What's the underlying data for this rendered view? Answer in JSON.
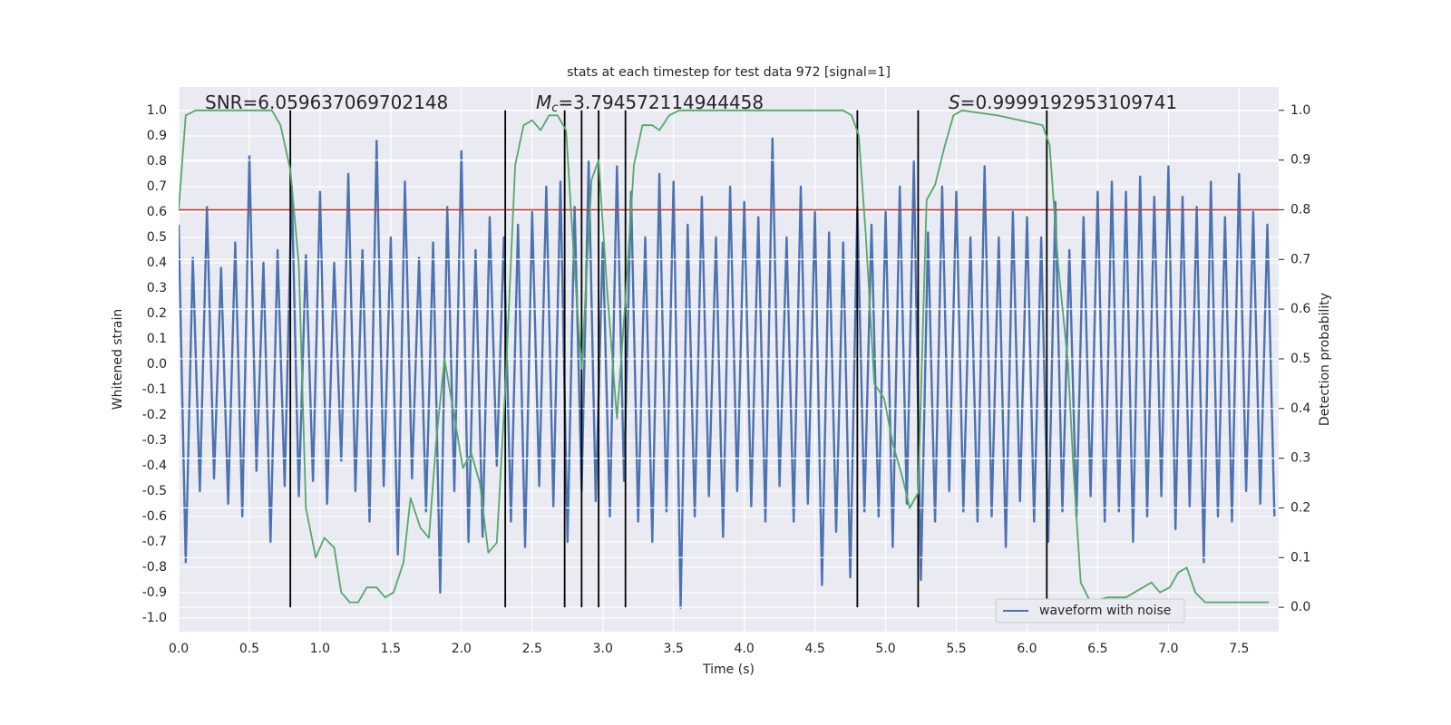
{
  "chart_data": {
    "type": "line",
    "title": "stats at each timestep for test data 972 [signal=1]",
    "xlabel": "Time (s)",
    "ylabel": "Whitened strain",
    "y2label": "Detection probability",
    "xlim": [
      0,
      7.78
    ],
    "ylim": [
      -1.054,
      1.093
    ],
    "y2lim": [
      -0.049,
      1.047
    ],
    "xticks": [
      {
        "value": 0,
        "label": "0.0"
      },
      0.5,
      {
        "value": 1,
        "label": "1.0"
      },
      1.5,
      {
        "value": 2,
        "label": "2.0"
      },
      2.5,
      {
        "value": 3,
        "label": "3.0"
      },
      3.5,
      {
        "value": 4,
        "label": "4.0"
      },
      4.5,
      {
        "value": 5,
        "label": "5.0"
      },
      5.5,
      {
        "value": 6,
        "label": "6.0"
      },
      6.5,
      {
        "value": 7,
        "label": "7.0"
      },
      7.5
    ],
    "yticks": [
      {
        "value": -1,
        "label": "-1.0"
      },
      -0.9,
      -0.8,
      -0.7,
      -0.6,
      -0.5,
      -0.4,
      -0.3,
      -0.2,
      -0.1,
      {
        "value": 0,
        "label": "0.0"
      },
      0.1,
      0.2,
      0.3,
      0.4,
      0.5,
      0.6,
      0.7,
      0.8,
      0.9,
      {
        "value": 1,
        "label": "1.0"
      }
    ],
    "y2ticks": [
      {
        "value": 0,
        "label": "0.0"
      },
      0.1,
      0.2,
      0.3,
      0.4,
      0.5,
      0.6,
      0.7,
      0.8,
      0.9,
      {
        "value": 1,
        "label": "1.0"
      }
    ],
    "grid": true,
    "legend": "lower right",
    "series": [
      {
        "name": "waveform with noise",
        "color": "#4c72b0",
        "x": [
          0,
          0.05,
          0.1,
          0.15,
          0.2,
          0.25,
          0.3,
          0.35,
          0.4,
          0.45,
          0.5,
          0.55,
          0.6,
          0.65,
          0.7,
          0.75,
          0.8,
          0.85,
          0.9,
          0.95,
          1,
          1.05,
          1.1,
          1.15,
          1.2,
          1.25,
          1.3,
          1.35,
          1.4,
          1.45,
          1.5,
          1.55,
          1.6,
          1.65,
          1.7,
          1.75,
          1.8,
          1.85,
          1.9,
          1.95,
          2,
          2.05,
          2.1,
          2.15,
          2.2,
          2.25,
          2.3,
          2.35,
          2.4,
          2.45,
          2.5,
          2.55,
          2.6,
          2.65,
          2.7,
          2.75,
          2.8,
          2.85,
          2.9,
          2.95,
          3,
          3.05,
          3.1,
          3.15,
          3.2,
          3.25,
          3.3,
          3.35,
          3.4,
          3.45,
          3.5,
          3.55,
          3.6,
          3.65,
          3.7,
          3.75,
          3.8,
          3.85,
          3.9,
          3.95,
          4,
          4.05,
          4.1,
          4.15,
          4.2,
          4.25,
          4.3,
          4.35,
          4.4,
          4.45,
          4.5,
          4.55,
          4.6,
          4.65,
          4.7,
          4.75,
          4.8,
          4.85,
          4.9,
          4.95,
          5,
          5.05,
          5.1,
          5.15,
          5.2,
          5.25,
          5.3,
          5.35,
          5.4,
          5.45,
          5.5,
          5.55,
          5.6,
          5.65,
          5.7,
          5.75,
          5.8,
          5.85,
          5.9,
          5.95,
          6,
          6.05,
          6.1,
          6.15,
          6.2,
          6.25,
          6.3,
          6.35,
          6.4,
          6.45,
          6.5,
          6.55,
          6.6,
          6.65,
          6.7,
          6.75,
          6.8,
          6.85,
          6.9,
          6.95,
          7,
          7.05,
          7.1,
          7.15,
          7.2,
          7.25,
          7.3,
          7.35,
          7.4,
          7.45,
          7.5,
          7.55,
          7.6,
          7.65,
          7.7,
          7.75
        ],
        "values": [
          0.55,
          -0.78,
          0.42,
          -0.5,
          0.62,
          -0.45,
          0.38,
          -0.55,
          0.48,
          -0.6,
          0.82,
          -0.42,
          0.4,
          -0.7,
          0.45,
          -0.48,
          0.7,
          -0.52,
          0.43,
          -0.46,
          0.68,
          -0.55,
          0.4,
          -0.38,
          0.75,
          -0.5,
          0.45,
          -0.62,
          0.88,
          -0.48,
          0.5,
          -0.75,
          0.72,
          -0.45,
          0.42,
          -0.58,
          0.48,
          -0.9,
          0.62,
          -0.5,
          0.84,
          -0.7,
          0.45,
          -0.68,
          0.58,
          -0.4,
          0.5,
          -0.62,
          0.55,
          -0.72,
          0.6,
          -0.48,
          0.7,
          -0.56,
          0.72,
          -0.7,
          0.62,
          -0.5,
          0.8,
          -0.54,
          0.48,
          -0.6,
          0.78,
          -0.46,
          0.68,
          -0.62,
          0.5,
          -0.7,
          0.75,
          -0.58,
          0.72,
          -0.96,
          0.55,
          -0.6,
          0.66,
          -0.52,
          0.5,
          -0.68,
          0.7,
          -0.5,
          0.64,
          -0.56,
          0.58,
          -0.62,
          0.89,
          -0.48,
          0.5,
          -0.62,
          0.7,
          -0.55,
          0.6,
          -0.87,
          0.52,
          -0.66,
          0.48,
          -0.84,
          0.62,
          -0.58,
          0.55,
          -0.6,
          0.6,
          -0.72,
          0.7,
          -0.55,
          0.8,
          -0.85,
          0.52,
          -0.62,
          0.7,
          -0.5,
          0.68,
          -0.58,
          0.5,
          -0.62,
          0.78,
          -0.6,
          0.5,
          -0.72,
          0.6,
          -0.54,
          0.58,
          -0.62,
          0.5,
          -0.7,
          0.64,
          -0.58,
          0.45,
          -0.6,
          0.58,
          -0.52,
          0.68,
          -0.62,
          0.72,
          -0.58,
          0.68,
          -0.7,
          0.74,
          -0.6,
          0.66,
          -0.52,
          0.78,
          -0.65,
          0.66,
          -0.56,
          0.62,
          -0.78,
          0.72,
          -0.6,
          0.58,
          -0.62,
          0.75,
          -0.5,
          0.6,
          -0.55,
          0.55,
          -0.6
        ]
      },
      {
        "color": "#55a868",
        "axis": "y2",
        "x": [
          0,
          0.05,
          0.12,
          0.66,
          0.72,
          0.79,
          0.85,
          0.9,
          0.97,
          1.03,
          1.1,
          1.15,
          1.21,
          1.27,
          1.33,
          1.4,
          1.46,
          1.52,
          1.59,
          1.64,
          1.71,
          1.77,
          1.82,
          1.88,
          1.94,
          2.01,
          2.07,
          2.13,
          2.19,
          2.25,
          2.31,
          2.38,
          2.44,
          2.5,
          2.56,
          2.62,
          2.68,
          2.74,
          2.8,
          2.85,
          2.92,
          2.97,
          3.03,
          3.1,
          3.16,
          3.22,
          3.28,
          3.35,
          3.4,
          3.47,
          3.54,
          4.7,
          4.76,
          4.81,
          4.86,
          4.92,
          4.99,
          5.05,
          5.12,
          5.17,
          5.23,
          5.29,
          5.35,
          5.42,
          5.48,
          5.54,
          5.79,
          6.11,
          6.16,
          6.22,
          6.29,
          6.33,
          6.38,
          6.45,
          6.57,
          6.7,
          6.82,
          6.88,
          6.94,
          7.01,
          7.07,
          7.13,
          7.19,
          7.26,
          7.71
        ],
        "values": [
          0.8,
          0.99,
          1,
          1,
          0.97,
          0.88,
          0.69,
          0.2,
          0.1,
          0.14,
          0.12,
          0.03,
          0.01,
          0.01,
          0.04,
          0.04,
          0.02,
          0.03,
          0.09,
          0.22,
          0.16,
          0.14,
          0.33,
          0.5,
          0.4,
          0.28,
          0.31,
          0.25,
          0.11,
          0.13,
          0.44,
          0.89,
          0.97,
          0.98,
          0.96,
          0.99,
          0.99,
          0.96,
          0.68,
          0.48,
          0.86,
          0.9,
          0.64,
          0.38,
          0.62,
          0.89,
          0.97,
          0.97,
          0.96,
          0.99,
          1,
          1,
          0.99,
          0.95,
          0.75,
          0.45,
          0.42,
          0.33,
          0.26,
          0.2,
          0.23,
          0.82,
          0.85,
          0.93,
          0.99,
          1,
          0.99,
          0.97,
          0.93,
          0.69,
          0.49,
          0.27,
          0.05,
          0.01,
          0.02,
          0.02,
          0.04,
          0.05,
          0.03,
          0.04,
          0.07,
          0.08,
          0.03,
          0.01,
          0.01
        ]
      }
    ],
    "threshold": {
      "y": 0.8,
      "axis": "y2",
      "color": "#c8312f"
    },
    "vlines": {
      "x": [
        0.79,
        2.31,
        2.73,
        2.85,
        2.97,
        3.16,
        4.8,
        5.23,
        6.14
      ],
      "ymin": 0,
      "ymax": 1,
      "axis": "y2",
      "color": "#000000"
    },
    "annotations": [
      {
        "text": "SNR=6.059637069702148"
      },
      {
        "symbol": "M",
        "subscript": "c",
        "text": "=3.794572114944458"
      },
      {
        "symbol": "S",
        "text": "=0.9999192953109741"
      }
    ]
  }
}
